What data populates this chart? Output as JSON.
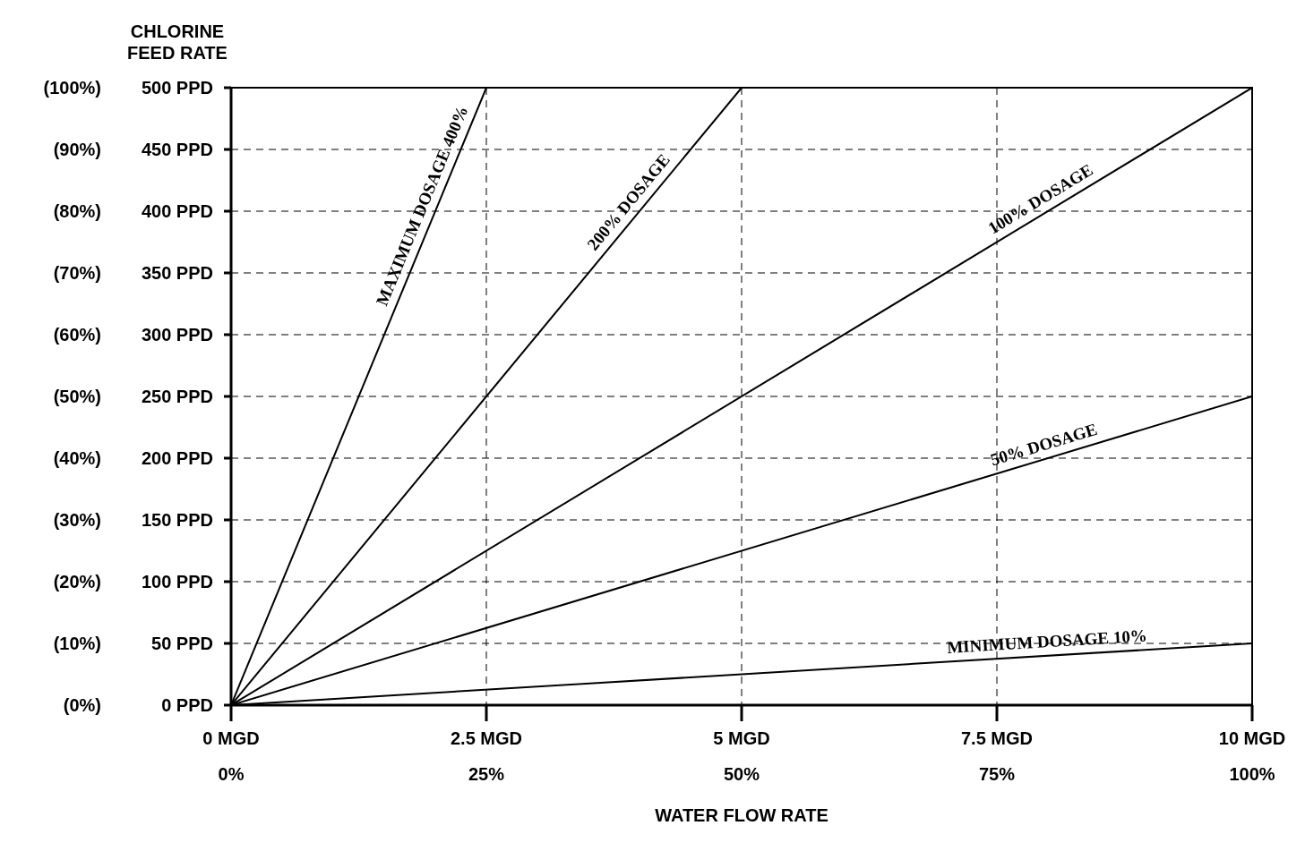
{
  "chart_data": {
    "type": "line",
    "xlabel": "WATER FLOW RATE",
    "ylabel": "CHLORINE\nFEED RATE",
    "xlim": [
      0,
      10
    ],
    "ylim": [
      0,
      500
    ],
    "x2lim": [
      0,
      100
    ],
    "y2lim": [
      0,
      100
    ],
    "xticks": [
      {
        "value": 0,
        "label": "0 MGD"
      },
      {
        "value": 2.5,
        "label": "2.5 MGD"
      },
      {
        "value": 5,
        "label": "5 MGD"
      },
      {
        "value": 7.5,
        "label": "7.5 MGD"
      },
      {
        "value": 10,
        "label": "10 MGD"
      }
    ],
    "x2ticks": [
      {
        "value": 0,
        "label": "0%"
      },
      {
        "value": 25,
        "label": "25%"
      },
      {
        "value": 50,
        "label": "50%"
      },
      {
        "value": 75,
        "label": "75%"
      },
      {
        "value": 100,
        "label": "100%"
      }
    ],
    "yticks": [
      {
        "value": 0,
        "label": "0 PPD"
      },
      {
        "value": 50,
        "label": "50 PPD"
      },
      {
        "value": 100,
        "label": "100 PPD"
      },
      {
        "value": 150,
        "label": "150 PPD"
      },
      {
        "value": 200,
        "label": "200 PPD"
      },
      {
        "value": 250,
        "label": "250 PPD"
      },
      {
        "value": 300,
        "label": "300 PPD"
      },
      {
        "value": 350,
        "label": "350 PPD"
      },
      {
        "value": 400,
        "label": "400 PPD"
      },
      {
        "value": 450,
        "label": "450 PPD"
      },
      {
        "value": 500,
        "label": "500 PPD"
      }
    ],
    "y2ticks": [
      {
        "value": 0,
        "label": "(0%)"
      },
      {
        "value": 10,
        "label": "(10%)"
      },
      {
        "value": 20,
        "label": "(20%)"
      },
      {
        "value": 30,
        "label": "(30%)"
      },
      {
        "value": 40,
        "label": "(40%)"
      },
      {
        "value": 50,
        "label": "(50%)"
      },
      {
        "value": 60,
        "label": "(60%)"
      },
      {
        "value": 70,
        "label": "(70%)"
      },
      {
        "value": 80,
        "label": "(80%)"
      },
      {
        "value": 90,
        "label": "(90%)"
      },
      {
        "value": 100,
        "label": "(100%)"
      }
    ],
    "grid": true,
    "marker": "none",
    "line_style": "solid",
    "legend": false,
    "series": [
      {
        "name": "MAXIMUM DOSAGE 400%",
        "color": "#000000",
        "x": [
          0,
          2.5
        ],
        "values": [
          0,
          500
        ]
      },
      {
        "name": "200% DOSAGE",
        "color": "#000000",
        "x": [
          0,
          5
        ],
        "values": [
          0,
          500
        ]
      },
      {
        "name": "100% DOSAGE",
        "color": "#000000",
        "x": [
          0,
          10
        ],
        "values": [
          0,
          500
        ]
      },
      {
        "name": "50% DOSAGE",
        "color": "#000000",
        "x": [
          0,
          10
        ],
        "values": [
          0,
          250
        ]
      },
      {
        "name": "MINIMUM DOSAGE 10%",
        "color": "#000000",
        "x": [
          0,
          10
        ],
        "values": [
          0,
          50
        ]
      }
    ]
  }
}
